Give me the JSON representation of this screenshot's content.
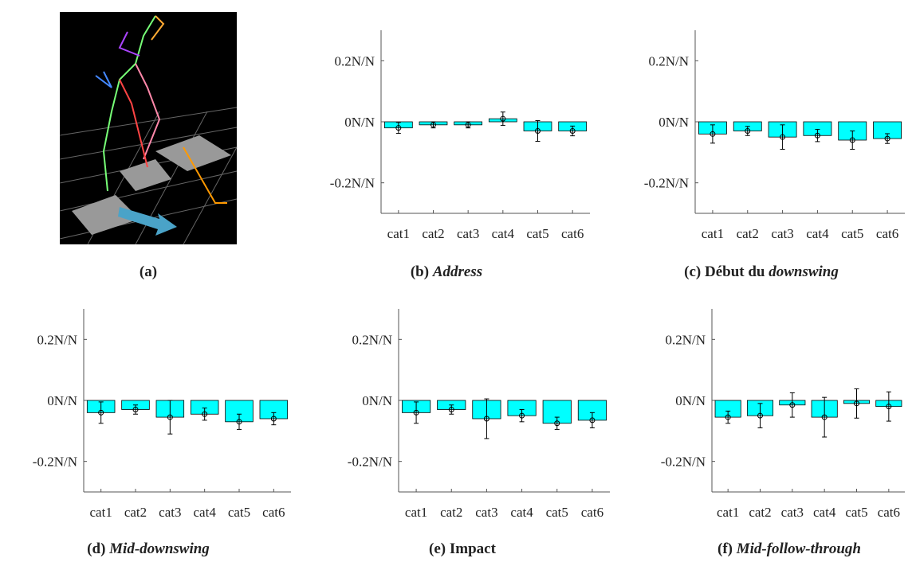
{
  "panel_a": {
    "caption": "(a)"
  },
  "chart_data": [
    {
      "type": "bar",
      "caption_label": "(b)",
      "title_parts": [
        {
          "text": "Address",
          "italic": true
        }
      ],
      "categories": [
        "cat1",
        "cat2",
        "cat3",
        "cat4",
        "cat5",
        "cat6"
      ],
      "series": [
        {
          "color": "#00ffff",
          "values": [
            -0.02,
            -0.01,
            -0.01,
            0.01,
            -0.03,
            -0.03
          ],
          "errors": [
            0.018,
            0.01,
            0.01,
            0.022,
            0.034,
            0.016
          ]
        }
      ],
      "ylim": [
        -0.3,
        0.3
      ],
      "yticks": [
        {
          "value": 0.2,
          "label": "0.2N/N"
        },
        {
          "value": 0,
          "label": "0N/N"
        },
        {
          "value": -0.2,
          "label": "-0.2N/N"
        }
      ]
    },
    {
      "type": "bar",
      "caption_label": "(c)",
      "title_parts": [
        {
          "text": "Début du ",
          "italic": false
        },
        {
          "text": "downswing",
          "italic": true
        }
      ],
      "categories": [
        "cat1",
        "cat2",
        "cat3",
        "cat4",
        "cat5",
        "cat6"
      ],
      "series": [
        {
          "color": "#00ffff",
          "values": [
            -0.04,
            -0.03,
            -0.05,
            -0.045,
            -0.06,
            -0.055
          ],
          "errors": [
            0.03,
            0.015,
            0.04,
            0.02,
            0.03,
            0.016
          ]
        }
      ],
      "ylim": [
        -0.3,
        0.3
      ],
      "yticks": [
        {
          "value": 0.2,
          "label": "0.2N/N"
        },
        {
          "value": 0,
          "label": "0N/N"
        },
        {
          "value": -0.2,
          "label": "-0.2N/N"
        }
      ]
    },
    {
      "type": "bar",
      "caption_label": "(d)",
      "title_parts": [
        {
          "text": "Mid-downswing",
          "italic": true
        }
      ],
      "categories": [
        "cat1",
        "cat2",
        "cat3",
        "cat4",
        "cat5",
        "cat6"
      ],
      "series": [
        {
          "color": "#00ffff",
          "values": [
            -0.04,
            -0.03,
            -0.055,
            -0.045,
            -0.07,
            -0.06
          ],
          "errors": [
            0.035,
            0.015,
            0.055,
            0.02,
            0.025,
            0.02
          ]
        }
      ],
      "ylim": [
        -0.3,
        0.3
      ],
      "yticks": [
        {
          "value": 0.2,
          "label": "0.2N/N"
        },
        {
          "value": 0,
          "label": "0N/N"
        },
        {
          "value": -0.2,
          "label": "-0.2N/N"
        }
      ]
    },
    {
      "type": "bar",
      "caption_label": "(e)",
      "title_parts": [
        {
          "text": "Impact",
          "italic": false
        }
      ],
      "categories": [
        "cat1",
        "cat2",
        "cat3",
        "cat4",
        "cat5",
        "cat6"
      ],
      "series": [
        {
          "color": "#00ffff",
          "values": [
            -0.04,
            -0.03,
            -0.06,
            -0.05,
            -0.075,
            -0.065
          ],
          "errors": [
            0.035,
            0.015,
            0.065,
            0.02,
            0.02,
            0.025
          ]
        }
      ],
      "ylim": [
        -0.3,
        0.3
      ],
      "yticks": [
        {
          "value": 0.2,
          "label": "0.2N/N"
        },
        {
          "value": 0,
          "label": "0N/N"
        },
        {
          "value": -0.2,
          "label": "-0.2N/N"
        }
      ]
    },
    {
      "type": "bar",
      "caption_label": "(f)",
      "title_parts": [
        {
          "text": "Mid-follow-through",
          "italic": true
        }
      ],
      "categories": [
        "cat1",
        "cat2",
        "cat3",
        "cat4",
        "cat5",
        "cat6"
      ],
      "series": [
        {
          "color": "#00ffff",
          "values": [
            -0.055,
            -0.05,
            -0.015,
            -0.055,
            -0.01,
            -0.02
          ],
          "errors": [
            0.02,
            0.04,
            0.04,
            0.065,
            0.048,
            0.048
          ]
        }
      ],
      "ylim": [
        -0.3,
        0.3
      ],
      "yticks": [
        {
          "value": 0.2,
          "label": "0.2N/N"
        },
        {
          "value": 0,
          "label": "0N/N"
        },
        {
          "value": -0.2,
          "label": "-0.2N/N"
        }
      ]
    }
  ]
}
